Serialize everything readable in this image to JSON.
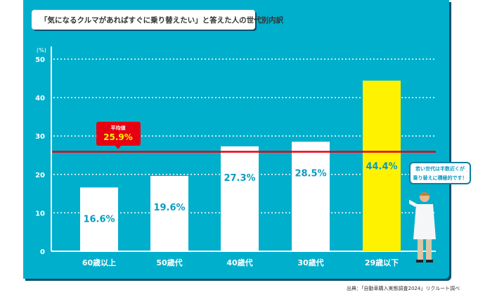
{
  "title": "「気になるクルマがあればすぐに乗り替えたい」と答えた人の世代別内訳",
  "icon": "bar-chart-icon",
  "footer": "出典：「自動車購入実態調査2024」リクルート調べ",
  "callout": {
    "line1": "若い世代は半数近くが",
    "line2": "乗り替えに積極的です！"
  },
  "average": {
    "label": "平均値",
    "value": 25.9,
    "display": "25.9%"
  },
  "colors": {
    "background": "#00afcc",
    "bar": "#ffffff",
    "highlight": "#fff200",
    "average": "#e60012",
    "value_text": "#0a9cc0"
  },
  "chart_data": {
    "type": "bar",
    "ylabel": "(%)",
    "ylim": [
      0,
      50
    ],
    "yticks": [
      "0",
      "10",
      "20",
      "30",
      "40",
      "50"
    ],
    "grid": true,
    "categories": [
      "60歳以上",
      "50歳代",
      "40歳代",
      "30歳代",
      "29歳以下"
    ],
    "values": [
      16.6,
      19.6,
      27.3,
      28.5,
      44.4
    ],
    "labels": [
      "16.6%",
      "19.6%",
      "27.3%",
      "28.5%",
      "44.4%"
    ],
    "highlight_index": 4
  }
}
